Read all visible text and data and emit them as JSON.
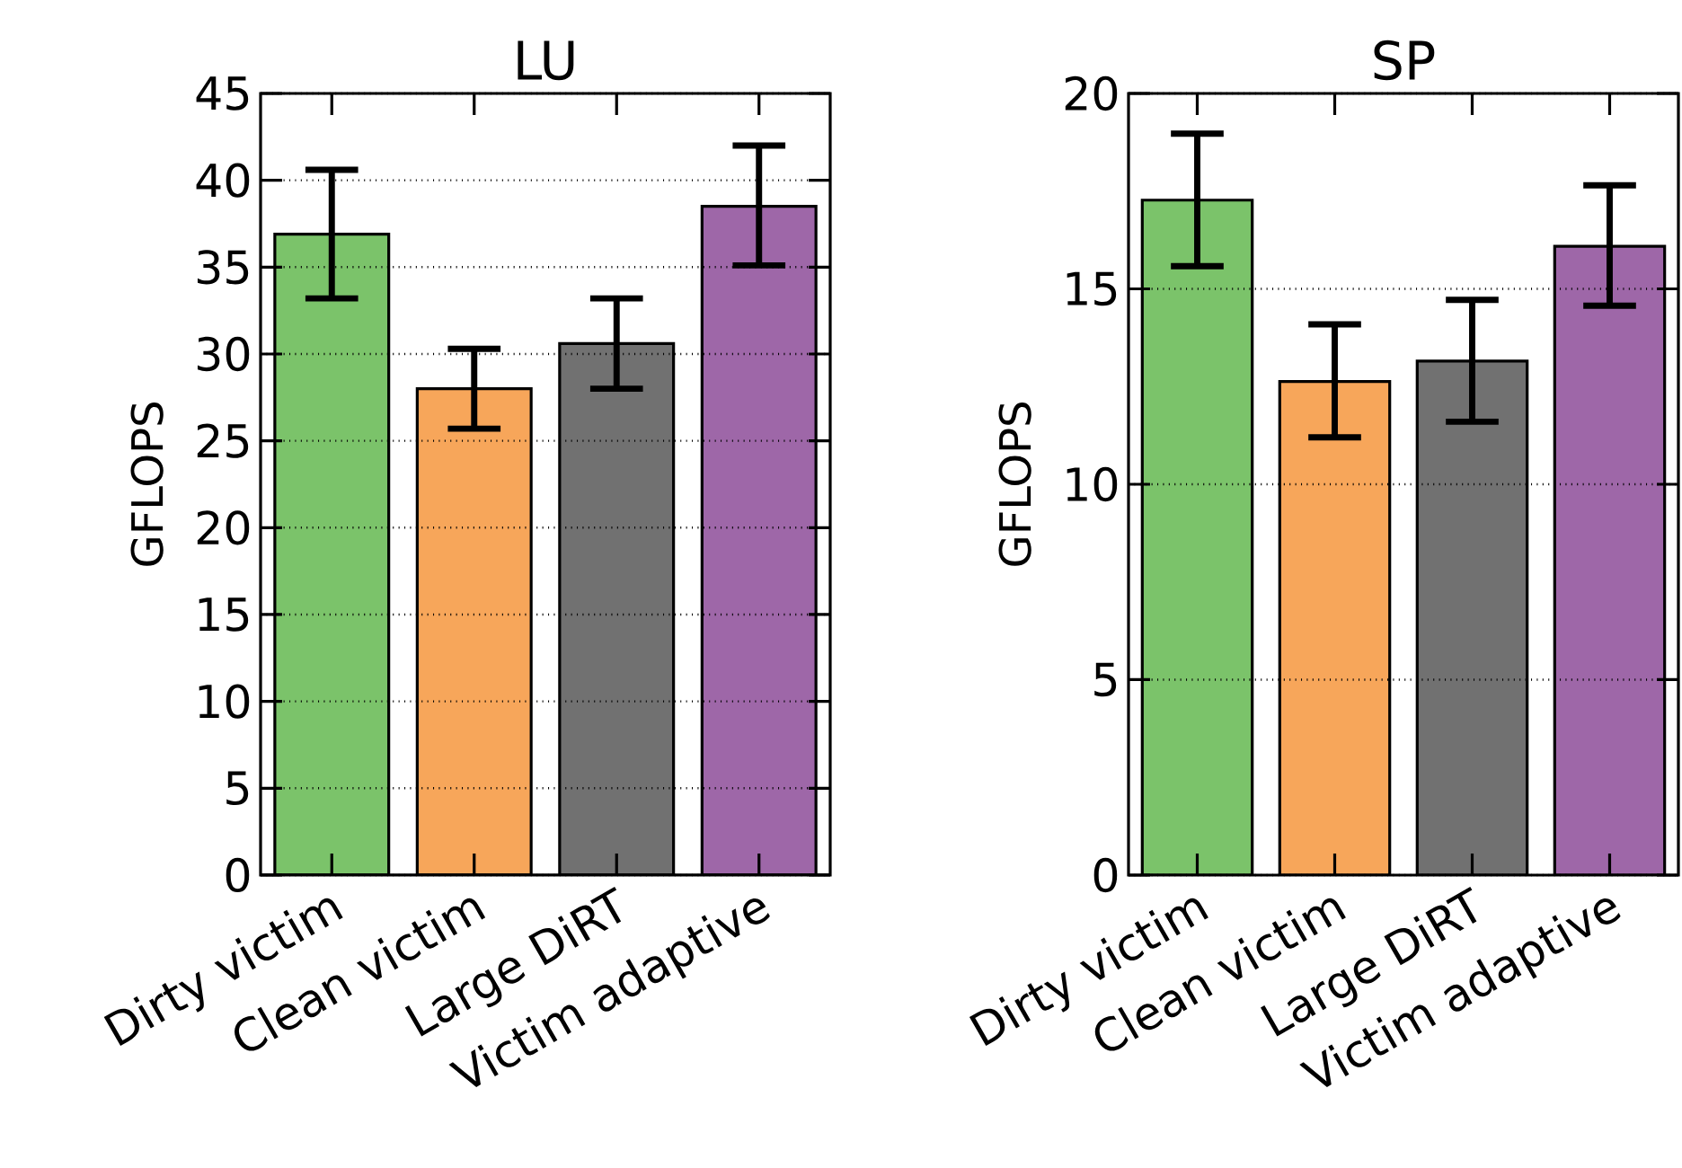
{
  "chart_data": [
    {
      "type": "bar",
      "title": "LU",
      "ylabel": "GFLOPS",
      "categories": [
        "Dirty victim",
        "Clean victim",
        "Large DiRT",
        "Victim adaptive"
      ],
      "values": [
        36.9,
        28.0,
        30.6,
        38.5
      ],
      "colors": [
        "#7bc36a",
        "#f7a65a",
        "#717171",
        "#9e67a8"
      ],
      "errors": [
        [
          33.2,
          40.6
        ],
        [
          25.7,
          30.3
        ],
        [
          28.0,
          33.2
        ],
        [
          35.1,
          42.0
        ]
      ],
      "ylim": [
        0,
        45
      ],
      "yticks": [
        0,
        5,
        10,
        15,
        20,
        25,
        30,
        35,
        40,
        45
      ],
      "grid": "y"
    },
    {
      "type": "bar",
      "title": "SP",
      "ylabel": "GFLOPS",
      "categories": [
        "Dirty victim",
        "Clean victim",
        "Large DiRT",
        "Victim adaptive"
      ],
      "values": [
        17.27,
        12.63,
        13.15,
        16.09
      ],
      "colors": [
        "#7bc36a",
        "#f7a65a",
        "#717171",
        "#9e67a8"
      ],
      "errors": [
        [
          15.58,
          18.97
        ],
        [
          11.2,
          14.09
        ],
        [
          11.6,
          14.72
        ],
        [
          14.57,
          17.65
        ]
      ],
      "ylim": [
        0,
        20
      ],
      "yticks": [
        0,
        5,
        10,
        15,
        20
      ],
      "grid": "y"
    }
  ]
}
